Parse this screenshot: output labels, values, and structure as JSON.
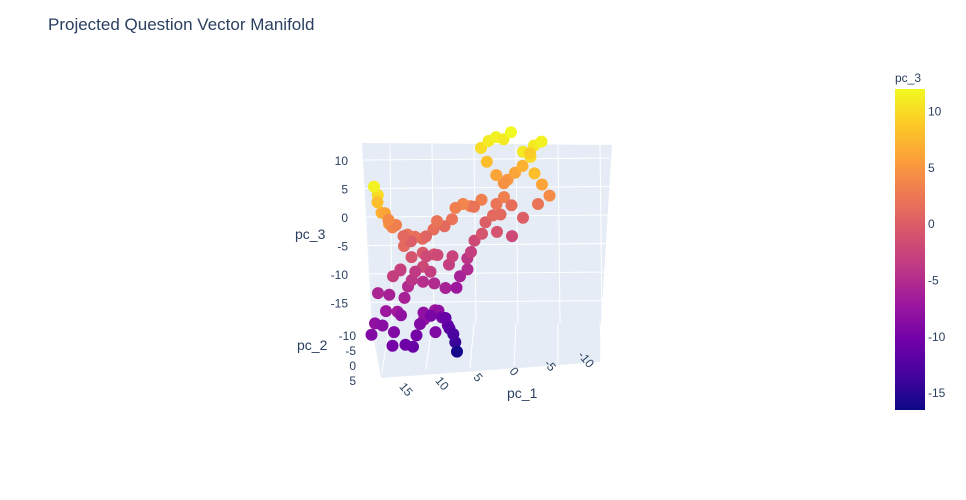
{
  "chart_data": {
    "type": "scatter",
    "title": "Projected Question Vector Manifold",
    "axes": {
      "x": {
        "label": "pc_1",
        "ticks": [
          "15",
          "10",
          "5",
          "0",
          "-5",
          "-10"
        ],
        "range": [
          -13,
          19
        ]
      },
      "y": {
        "label": "pc_2",
        "ticks": [
          "-10",
          "-5",
          "0",
          "5"
        ],
        "range": [
          -12,
          7
        ]
      },
      "z": {
        "label": "pc_3",
        "ticks": [
          "10",
          "5",
          "0",
          "-5",
          "-10",
          "-15"
        ],
        "range": [
          -17,
          12
        ]
      }
    },
    "colorbar": {
      "title": "pc_3",
      "ticks": [
        "10",
        "5",
        "0",
        "-5",
        "-10",
        "-15"
      ],
      "range": [
        -16.5,
        12
      ],
      "colorscale": [
        "#0d0887",
        "#46039f",
        "#7201a8",
        "#9c179e",
        "#bd3786",
        "#d8576b",
        "#ed7953",
        "#fb9f3a",
        "#fdca26",
        "#f0f921"
      ]
    },
    "grid": true,
    "legend": "none",
    "points": [
      [
        4.0,
        0.0,
        -16.0
      ],
      [
        4.5,
        0.5,
        -14.0
      ],
      [
        5.0,
        0.0,
        -12.0
      ],
      [
        5.5,
        0.5,
        -11.0
      ],
      [
        6.0,
        0.0,
        -10.0
      ],
      [
        5.0,
        -1.0,
        -11.0
      ],
      [
        4.5,
        0.0,
        -13.0
      ],
      [
        17.0,
        3.0,
        -9.0
      ],
      [
        16.0,
        2.0,
        -8.0
      ],
      [
        15.0,
        2.0,
        -8.5
      ],
      [
        14.0,
        1.0,
        -7.0
      ],
      [
        13.0,
        2.0,
        -6.5
      ],
      [
        12.0,
        1.0,
        -8.0
      ],
      [
        11.0,
        3.0,
        -10.0
      ],
      [
        10.0,
        2.0,
        -9.0
      ],
      [
        9.0,
        1.0,
        -8.0
      ],
      [
        8.0,
        2.0,
        -7.0
      ],
      [
        7.0,
        1.0,
        -8.0
      ],
      [
        7.5,
        0.0,
        -9.5
      ],
      [
        12.0,
        4.0,
        -11.0
      ],
      [
        13.0,
        4.0,
        -10.5
      ],
      [
        15.0,
        4.5,
        -10.0
      ],
      [
        14.0,
        3.0,
        -9.0
      ],
      [
        10.0,
        3.0,
        -7.5
      ],
      [
        9.0,
        4.0,
        -9.0
      ],
      [
        11.0,
        0.0,
        -6.0
      ],
      [
        12.5,
        -1.0,
        -6.0
      ],
      [
        14.0,
        -1.0,
        -5.5
      ],
      [
        10.0,
        -1.0,
        -5.0
      ],
      [
        8.0,
        -1.0,
        -4.5
      ],
      [
        6.5,
        -1.0,
        -5.0
      ],
      [
        5.0,
        -1.0,
        -6.0
      ],
      [
        3.0,
        -2.0,
        -7.0
      ],
      [
        2.0,
        -3.0,
        -6.0
      ],
      [
        1.0,
        -3.0,
        -5.0
      ],
      [
        0.5,
        -4.0,
        -4.0
      ],
      [
        0.0,
        -4.0,
        -3.0
      ],
      [
        -1.0,
        -5.0,
        -2.0
      ],
      [
        -2.0,
        -5.0,
        -1.0
      ],
      [
        -3.0,
        -6.0,
        0.0
      ],
      [
        -4.0,
        -6.0,
        1.0
      ],
      [
        -5.0,
        -7.0,
        2.0
      ],
      [
        -6.0,
        -7.0,
        3.0
      ],
      [
        -7.0,
        -8.0,
        5.0
      ],
      [
        -8.0,
        -8.0,
        6.0
      ],
      [
        -9.0,
        -8.0,
        7.0
      ],
      [
        -10.0,
        -8.0,
        9.0
      ],
      [
        -9.0,
        -6.0,
        10.0
      ],
      [
        -10.0,
        -7.0,
        11.0
      ],
      [
        -11.0,
        -7.0,
        11.5
      ],
      [
        -8.0,
        -6.0,
        11.0
      ],
      [
        -9.0,
        -5.0,
        8.0
      ],
      [
        -10.0,
        -5.0,
        6.0
      ],
      [
        -11.0,
        -5.0,
        4.0
      ],
      [
        -10.0,
        -6.0,
        2.0
      ],
      [
        -8.0,
        -6.0,
        0.0
      ],
      [
        -6.0,
        -5.0,
        -2.0
      ],
      [
        -4.0,
        -5.0,
        -1.0
      ],
      [
        -5.0,
        -6.0,
        1.0
      ],
      [
        -7.0,
        -7.0,
        1.5
      ],
      [
        -6.5,
        -8.0,
        4.5
      ],
      [
        -5.5,
        -8.0,
        6.0
      ],
      [
        -4.5,
        -8.5,
        8.0
      ],
      [
        -4.0,
        -9.0,
        10.0
      ],
      [
        -5.0,
        -9.0,
        11.0
      ],
      [
        -6.0,
        -9.0,
        11.5
      ],
      [
        -7.0,
        -9.0,
        11.0
      ],
      [
        -8.0,
        -9.0,
        12.0
      ],
      [
        -3.0,
        -7.0,
        3.0
      ],
      [
        -2.0,
        -7.0,
        2.0
      ],
      [
        -1.0,
        -6.0,
        3.0
      ],
      [
        0.0,
        -6.0,
        3.5
      ],
      [
        1.0,
        -6.0,
        3.0
      ],
      [
        2.0,
        -5.0,
        2.0
      ],
      [
        3.0,
        -5.0,
        1.0
      ],
      [
        4.0,
        -5.0,
        2.0
      ],
      [
        5.0,
        -4.0,
        1.5
      ],
      [
        6.0,
        -4.0,
        0.5
      ],
      [
        7.0,
        -3.0,
        1.0
      ],
      [
        8.0,
        -3.0,
        1.5
      ],
      [
        9.0,
        -3.0,
        2.0
      ],
      [
        10.0,
        -4.0,
        3.0
      ],
      [
        11.0,
        -4.0,
        4.0
      ],
      [
        12.0,
        -3.0,
        6.0
      ],
      [
        13.0,
        -3.0,
        8.0
      ],
      [
        13.5,
        -2.0,
        10.0
      ],
      [
        14.0,
        -2.0,
        11.5
      ],
      [
        13.0,
        -2.0,
        7.0
      ],
      [
        12.0,
        -2.0,
        5.0
      ],
      [
        11.0,
        -3.0,
        3.5
      ],
      [
        10.0,
        -2.0,
        1.0
      ],
      [
        9.0,
        -2.0,
        -1.0
      ],
      [
        8.0,
        -1.0,
        -2.0
      ],
      [
        7.0,
        -1.0,
        -3.0
      ],
      [
        8.5,
        -2.0,
        -3.5
      ],
      [
        9.5,
        -1.0,
        -4.0
      ],
      [
        7.5,
        -2.0,
        -0.5
      ],
      [
        6.0,
        -2.0,
        -1.0
      ],
      [
        5.0,
        -3.0,
        -2.0
      ],
      [
        4.0,
        -2.0,
        -3.0
      ],
      [
        3.0,
        -3.0,
        -2.5
      ],
      [
        6.5,
        -3.0,
        -2.0
      ],
      [
        8.0,
        -4.0,
        0.0
      ],
      [
        9.0,
        -4.0,
        1.0
      ],
      [
        11.0,
        -1.0,
        -2.0
      ],
      [
        12.0,
        -1.0,
        -3.0
      ],
      [
        10.5,
        -2.0,
        -3.0
      ]
    ]
  }
}
